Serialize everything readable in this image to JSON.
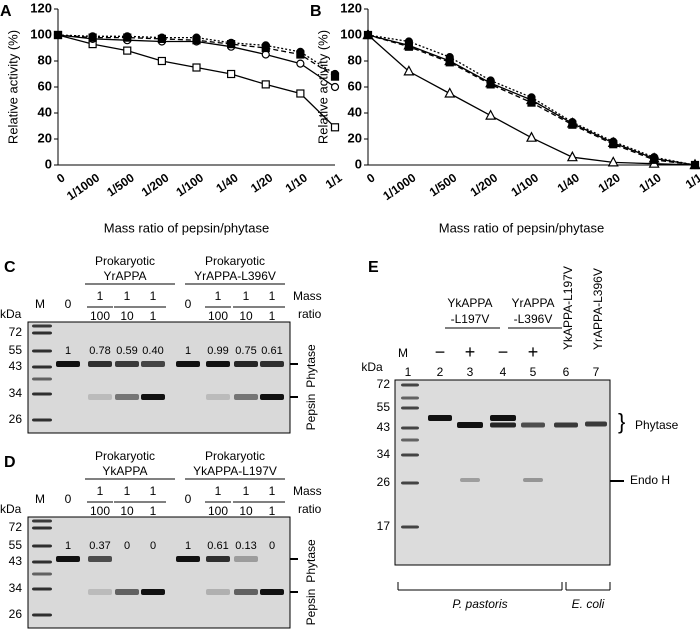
{
  "chart_data": [
    {
      "type": "line",
      "panel": "A",
      "y_label": "Relative activity (%)",
      "x_label": "Mass ratio of pepsin/phytase",
      "categories": [
        "0",
        "1/1000",
        "1/500",
        "1/200",
        "1/100",
        "1/40",
        "1/20",
        "1/10",
        "1/1"
      ],
      "ylim": [
        0,
        120
      ],
      "yticks": [
        0,
        20,
        40,
        60,
        80,
        100,
        120
      ],
      "series": [
        {
          "color": "#000000",
          "marker": "square",
          "filled": false,
          "dash": "solid",
          "values": [
            100,
            93,
            88,
            80,
            75,
            70,
            62,
            55,
            29
          ]
        },
        {
          "color": "#000000",
          "marker": "circle",
          "filled": false,
          "dash": "solid",
          "values": [
            100,
            97,
            96,
            95,
            95,
            91,
            85,
            78,
            60
          ]
        },
        {
          "color": "#000000",
          "marker": "circle",
          "filled": true,
          "dash": "dotted",
          "values": [
            100,
            99,
            99,
            98,
            98,
            94,
            92,
            87,
            70
          ]
        },
        {
          "color": "#000000",
          "marker": "square",
          "filled": true,
          "dash": "dashed",
          "values": [
            100,
            98,
            98,
            97,
            96,
            93,
            90,
            85,
            68
          ]
        }
      ]
    },
    {
      "type": "line",
      "panel": "B",
      "y_label": "Relative activity (%)",
      "x_label": "Mass ratio of pepsin/phytase",
      "categories": [
        "0",
        "1/1000",
        "1/500",
        "1/200",
        "1/100",
        "1/40",
        "1/20",
        "1/10",
        "1/1"
      ],
      "ylim": [
        0,
        120
      ],
      "yticks": [
        0,
        20,
        40,
        60,
        80,
        100,
        120
      ],
      "series": [
        {
          "color": "#000000",
          "marker": "triangle",
          "filled": false,
          "dash": "solid",
          "values": [
            100,
            72,
            55,
            38,
            21,
            6,
            2,
            1,
            0
          ]
        },
        {
          "color": "#000000",
          "marker": "triangle",
          "filled": false,
          "dash": "solid",
          "values": [
            100,
            92,
            80,
            63,
            50,
            32,
            17,
            5,
            0
          ]
        },
        {
          "color": "#000000",
          "marker": "circle",
          "filled": true,
          "dash": "dotted",
          "values": [
            100,
            95,
            83,
            65,
            52,
            33,
            18,
            6,
            0
          ]
        },
        {
          "color": "#000000",
          "marker": "square",
          "filled": true,
          "dash": "dashed",
          "values": [
            100,
            91,
            79,
            62,
            48,
            31,
            16,
            4,
            0
          ]
        }
      ]
    }
  ],
  "gels": [
    {
      "panel": "C",
      "unit": "kDa",
      "marker_lane": "M",
      "lane_note": [
        "Mass",
        "ratio"
      ],
      "groups": [
        {
          "name": [
            "Prokaryotic",
            "YrAPPA"
          ],
          "lanes": [
            "0",
            [
              "1",
              "100"
            ],
            [
              "1",
              "10"
            ],
            [
              "1",
              "1"
            ]
          ]
        },
        {
          "name": [
            "Prokaryotic",
            "YrAPPA-L396V"
          ],
          "lanes": [
            "0",
            [
              "1",
              "100"
            ],
            [
              "1",
              "10"
            ],
            [
              "1",
              "1"
            ]
          ]
        }
      ],
      "markers": [
        "72",
        "55",
        "43",
        "34",
        "26"
      ],
      "band_values": [
        "1",
        "0.78",
        "0.59",
        "0.40",
        "1",
        "0.99",
        "0.75",
        "0.61"
      ],
      "band_labels": [
        "Phytase",
        "Pepsin"
      ]
    },
    {
      "panel": "D",
      "unit": "kDa",
      "marker_lane": "M",
      "lane_note": [
        "Mass",
        "ratio"
      ],
      "groups": [
        {
          "name": [
            "Prokaryotic",
            "YkAPPA"
          ],
          "lanes": [
            "0",
            [
              "1",
              "100"
            ],
            [
              "1",
              "10"
            ],
            [
              "1",
              "1"
            ]
          ]
        },
        {
          "name": [
            "Prokaryotic",
            "YkAPPA-L197V"
          ],
          "lanes": [
            "0",
            [
              "1",
              "100"
            ],
            [
              "1",
              "10"
            ],
            [
              "1",
              "1"
            ]
          ]
        }
      ],
      "markers": [
        "72",
        "55",
        "43",
        "34",
        "26"
      ],
      "band_values": [
        "1",
        "0.37",
        "0",
        "0",
        "1",
        "0.61",
        "0.13",
        "0"
      ],
      "band_labels": [
        "Phytase",
        "Pepsin"
      ]
    }
  ],
  "gel_e": {
    "panel": "E",
    "unit": "kDa",
    "marker_lane": "M",
    "groups": [
      [
        "YkAPPA",
        "-L197V"
      ],
      [
        "YrAPPA",
        "-L396V"
      ]
    ],
    "treatments": [
      "−",
      "+",
      "−",
      "+"
    ],
    "rotated_lanes": [
      "YkAPPA-L197V",
      "YrAPPA-L396V"
    ],
    "lane_numbers": [
      "1",
      "2",
      "3",
      "4",
      "5",
      "6",
      "7"
    ],
    "markers": [
      "72",
      "55",
      "43",
      "34",
      "26",
      "17"
    ],
    "band_labels": [
      "Phytase",
      "Endo H"
    ],
    "hosts": [
      "P. pastoris",
      "E. coli"
    ]
  }
}
